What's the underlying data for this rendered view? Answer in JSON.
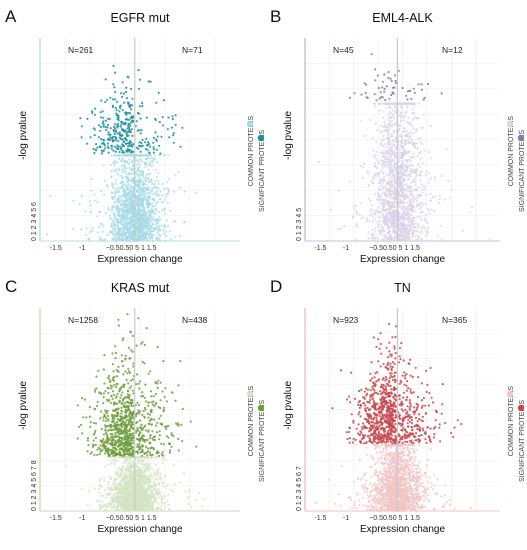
{
  "figure": {
    "panels": [
      {
        "letter": "A",
        "title": "EGFR mut",
        "n_left": "N=261",
        "n_right": "N=71",
        "xlabel": "Expression change",
        "ylabel": "-log pvalue",
        "x_tick_labels": [
          "-1.5",
          "-1",
          "-0.5",
          "0",
          "0.5",
          "1",
          "1.5"
        ],
        "x_tick_text": "−0.50.50 5 1 1.5",
        "y_tick_text": "0 1 2 3 4 5 6",
        "legend": [
          "COMMON PROTEINS",
          "SIGNIFICANT PROTEINS"
        ]
      },
      {
        "letter": "B",
        "title": "EML4-ALK",
        "n_left": "N=45",
        "n_right": "N=12",
        "xlabel": "Expression change",
        "ylabel": "-log pvalue",
        "x_tick_labels": [
          "-1.5",
          "-1",
          "-0.5",
          "0",
          "0.5",
          "1",
          "1.5"
        ],
        "x_tick_text": "−0.50.50 5 1 1.5",
        "y_tick_text": "0 1 2 3 4 5",
        "legend": [
          "COMMON PROTEINS",
          "SIGNIFICANT PROTEINS"
        ]
      },
      {
        "letter": "C",
        "title": "KRAS mut",
        "n_left": "N=1258",
        "n_right": "N=438",
        "xlabel": "Expression change",
        "ylabel": "-log pvalue",
        "x_tick_labels": [
          "-1.5",
          "-1",
          "-0.5",
          "0",
          "0.5",
          "1",
          "1.5"
        ],
        "x_tick_text": "−0.50.50 5 1 1.5",
        "y_tick_text": "0 1 2 3 4 5 6 7 8",
        "legend": [
          "COMMON PROTEINS",
          "SIGNIFICANT PROTEINS"
        ]
      },
      {
        "letter": "D",
        "title": "TN",
        "n_left": "N=923",
        "n_right": "N=365",
        "xlabel": "Expression change",
        "ylabel": "-log pvalue",
        "x_tick_labels": [
          "-1.5",
          "-1",
          "-0.5",
          "0",
          "0.5",
          "1",
          "1.5"
        ],
        "x_tick_text": "−0.50.50 5 1 1.5",
        "y_tick_text": "0 1 2 3 4 5 6 7",
        "legend": [
          "COMMON PROTEINS",
          "SIGNIFICANT PROTEINS"
        ]
      }
    ]
  },
  "chart_data": [
    {
      "type": "scatter",
      "title": "EGFR mut",
      "xlabel": "Expression change",
      "ylabel": "-log pvalue",
      "xlim": [
        -1.8,
        2.0
      ],
      "ylim": [
        0,
        6.5
      ],
      "grid": true,
      "legend_position": "right, vertical",
      "series": [
        {
          "name": "COMMON PROTEINS",
          "color": "#a6dbe6",
          "count_estimate": 2400
        },
        {
          "name": "SIGNIFICANT PROTEINS",
          "color": "#1a8fa0",
          "count_estimate": 332
        }
      ],
      "significance_threshold_estimate": 2.8,
      "annotations": {
        "left_count": 261,
        "right_count": 71
      },
      "palette": {
        "axis": "#b8dde6",
        "common": "#a6dbe6",
        "significant": "#1a8fa0"
      }
    },
    {
      "type": "scatter",
      "title": "EML4-ALK",
      "xlabel": "Expression change",
      "ylabel": "-log pvalue",
      "xlim": [
        -1.8,
        2.0
      ],
      "ylim": [
        0,
        5.5
      ],
      "grid": true,
      "legend_position": "right, vertical",
      "series": [
        {
          "name": "COMMON PROTEINS",
          "color": "#d9d2e8",
          "count_estimate": 2600
        },
        {
          "name": "SIGNIFICANT PROTEINS",
          "color": "#8a7aa8",
          "count_estimate": 57
        }
      ],
      "significance_threshold_estimate": 3.8,
      "annotations": {
        "left_count": 45,
        "right_count": 12
      },
      "palette": {
        "axis": "#c9bfdc",
        "common": "#d9d2e8",
        "significant": "#8a7aa8"
      }
    },
    {
      "type": "scatter",
      "title": "KRAS mut",
      "xlabel": "Expression change",
      "ylabel": "-log pvalue",
      "xlim": [
        -1.8,
        2.0
      ],
      "ylim": [
        0,
        8.5
      ],
      "grid": true,
      "legend_position": "right, vertical",
      "series": [
        {
          "name": "COMMON PROTEINS",
          "color": "#d3e3c3",
          "count_estimate": 2000
        },
        {
          "name": "SIGNIFICANT PROTEINS",
          "color": "#6e9e3c",
          "count_estimate": 1696
        }
      ],
      "significance_threshold_estimate": 2.3,
      "annotations": {
        "left_count": 1258,
        "right_count": 438
      },
      "palette": {
        "axis": "#c9dcb4",
        "common": "#d3e3c3",
        "significant": "#6e9e3c"
      }
    },
    {
      "type": "scatter",
      "title": "TN",
      "xlabel": "Expression change",
      "ylabel": "-log pvalue",
      "xlim": [
        -1.8,
        2.0
      ],
      "ylim": [
        0,
        7.5
      ],
      "grid": true,
      "legend_position": "right, vertical",
      "series": [
        {
          "name": "COMMON PROTEINS",
          "color": "#f2c4c6",
          "count_estimate": 2300
        },
        {
          "name": "SIGNIFICANT PROTEINS",
          "color": "#c8484f",
          "count_estimate": 1288
        }
      ],
      "significance_threshold_estimate": 2.5,
      "annotations": {
        "left_count": 923,
        "right_count": 365
      },
      "palette": {
        "axis": "#efc3c6",
        "common": "#f2c4c6",
        "significant": "#c8484f"
      }
    }
  ]
}
